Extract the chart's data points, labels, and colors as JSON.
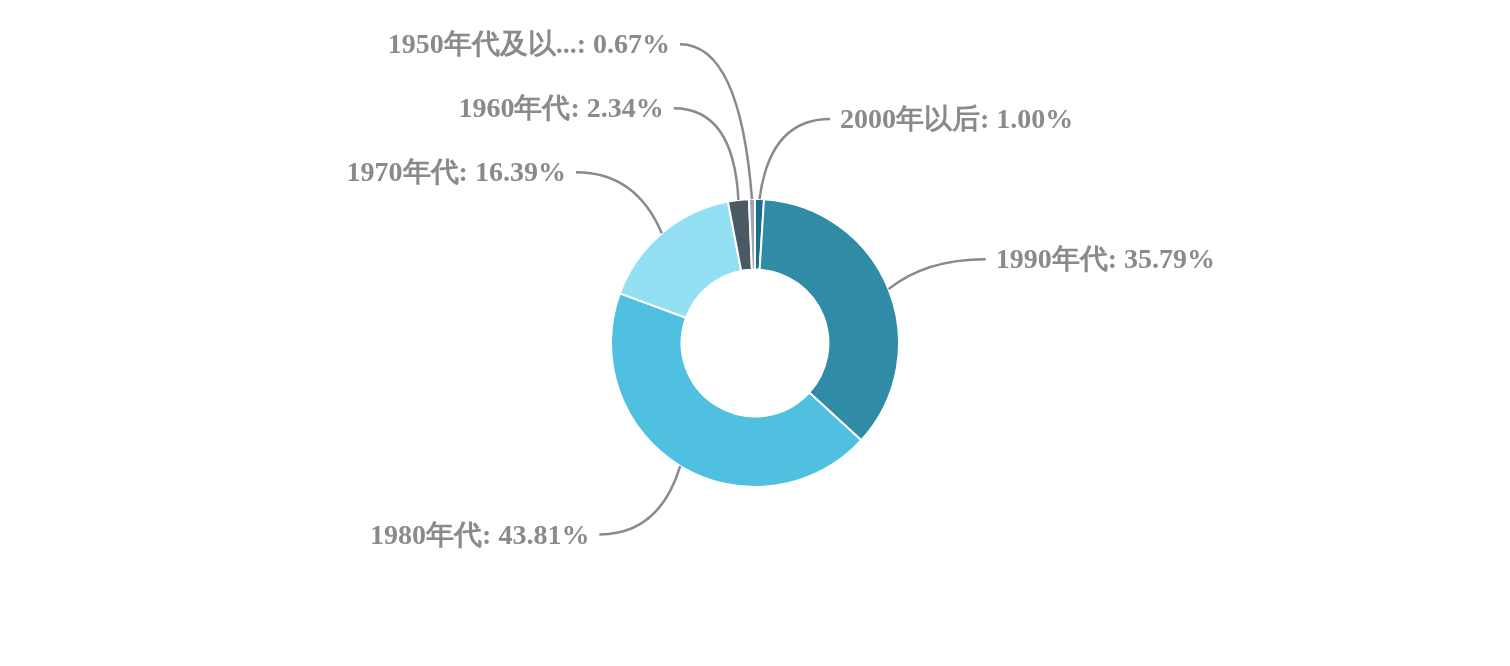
{
  "chart_data": {
    "type": "donut",
    "categories": [
      "2000年以后",
      "1990年代",
      "1980年代",
      "1970年代",
      "1960年代",
      "1950年代及以..."
    ],
    "values": [
      1.0,
      35.79,
      43.81,
      16.39,
      2.34,
      0.67
    ],
    "colors": [
      "#1a6f8c",
      "#2f8ba6",
      "#4fc0e0",
      "#93dff3",
      "#4a5a64",
      "#9ea3b8"
    ],
    "value_labels": [
      "1.00%",
      "35.79%",
      "43.81%",
      "16.39%",
      "2.34%",
      "0.67%"
    ]
  }
}
